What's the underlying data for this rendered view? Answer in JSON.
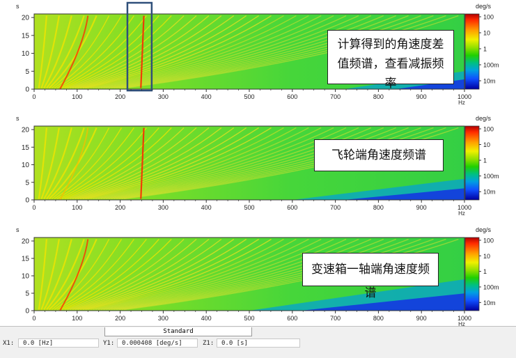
{
  "chart_data": [
    {
      "type": "heatmap",
      "panel": "top",
      "x": {
        "unit": "Hz",
        "ticks": [
          0,
          100,
          200,
          300,
          400,
          500,
          600,
          700,
          800,
          900,
          1000
        ],
        "range": [
          0,
          1000
        ]
      },
      "y": {
        "unit": "s",
        "ticks": [
          0,
          5,
          10,
          15,
          20
        ],
        "range": [
          0,
          21
        ]
      },
      "colorbar": {
        "unit": "deg/s",
        "scale": "log",
        "ticks": [
          "100",
          "10",
          "1",
          "100m",
          "10m"
        ],
        "tick_values": [
          100,
          10,
          1,
          0.1,
          0.01
        ]
      },
      "annotation": "计算得到的角速度差值频谱，查看减振频率",
      "highlight_box_x": [
        220,
        270
      ]
    },
    {
      "type": "heatmap",
      "panel": "middle",
      "x": {
        "unit": "Hz",
        "ticks": [
          0,
          100,
          200,
          300,
          400,
          500,
          600,
          700,
          800,
          900,
          1000
        ],
        "range": [
          0,
          1000
        ]
      },
      "y": {
        "unit": "s",
        "ticks": [
          0,
          5,
          10,
          15,
          20
        ],
        "range": [
          0,
          21
        ]
      },
      "colorbar": {
        "unit": "deg/s",
        "scale": "log",
        "ticks": [
          "100",
          "10",
          "1",
          "100m",
          "10m"
        ],
        "tick_values": [
          100,
          10,
          1,
          0.1,
          0.01
        ]
      },
      "annotation": "飞轮端角速度频谱"
    },
    {
      "type": "heatmap",
      "panel": "bottom",
      "x": {
        "unit": "Hz",
        "ticks": [
          0,
          100,
          200,
          300,
          400,
          500,
          600,
          700,
          800,
          900,
          1000
        ],
        "range": [
          0,
          1000
        ]
      },
      "y": {
        "unit": "s",
        "ticks": [
          0,
          5,
          10,
          15,
          20
        ],
        "range": [
          0,
          21
        ]
      },
      "colorbar": {
        "unit": "deg/s",
        "scale": "log",
        "ticks": [
          "100",
          "10",
          "1",
          "100m",
          "10m"
        ],
        "tick_values": [
          100,
          10,
          1,
          0.1,
          0.01
        ]
      },
      "annotation": "变速箱一轴端角速度频谱"
    }
  ],
  "annotations": {
    "top_line1": "计算得到的角速度差",
    "top_line2": "值频谱，查看减振频率",
    "middle": "飞轮端角速度频谱",
    "bottom": "变速箱一轴端角速度频谱"
  },
  "statusbar": {
    "tab": "Standard",
    "x1_label": "X1:",
    "x1_value": "0.0 [Hz]",
    "y1_label": "Y1:",
    "y1_value": "0.000408 [deg/s]",
    "z1_label": "Z1:",
    "z1_value": "0.0 [s]"
  },
  "colors": {
    "plot_bg": "#3fd23f",
    "highlight_box": "#2f4f7a"
  }
}
